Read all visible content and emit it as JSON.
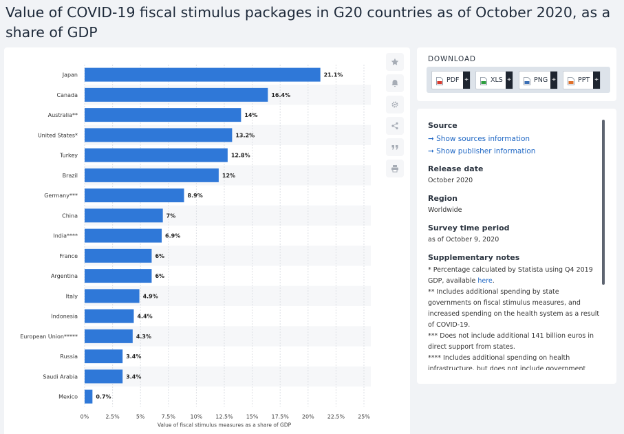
{
  "page": {
    "title": "Value of COVID-19 fiscal stimulus packages in G20 countries as of October 2020, as a share of GDP"
  },
  "toolbar": {
    "icons": [
      "star-icon",
      "bell-icon",
      "gear-icon",
      "share-icon",
      "quote-icon",
      "print-icon"
    ]
  },
  "download": {
    "title": "DOWNLOAD",
    "buttons": [
      {
        "label": "PDF",
        "color": "#d83a2e"
      },
      {
        "label": "XLS",
        "color": "#2e9e3f"
      },
      {
        "label": "PNG",
        "color": "#3b6fb5"
      },
      {
        "label": "PPT",
        "color": "#e0712b"
      }
    ],
    "plus": "+"
  },
  "info": {
    "source_heading": "Source",
    "source_link": "➞ Show sources information",
    "publisher_link": "➞ Show publisher information",
    "release_heading": "Release date",
    "release_value": "October 2020",
    "region_heading": "Region",
    "region_value": "Worldwide",
    "survey_heading": "Survey time period",
    "survey_value": "as of October 9, 2020",
    "notes_heading": "Supplementary notes",
    "note1_a": "* Percentage calculated by Statista using Q4 2019 GDP, available ",
    "note1_link": "here",
    "note1_b": ".",
    "note2": "** Includes additional spending by state governments on fiscal stimulus measures, and increased spending on the health system as a result of COVID-19.",
    "note3": "*** Does not include additional 141 billion euros in direct support from states.",
    "note4": "**** Includes additional spending on health infrastructure, but does not include government"
  },
  "chart_data": {
    "type": "bar",
    "orientation": "horizontal",
    "categories": [
      "Japan",
      "Canada",
      "Australia**",
      "United States*",
      "Turkey",
      "Brazil",
      "Germany***",
      "China",
      "India****",
      "France",
      "Argentina",
      "Italy",
      "Indonesia",
      "European Union*****",
      "Russia",
      "Saudi Arabia",
      "Mexico"
    ],
    "values": [
      21.1,
      16.4,
      14,
      13.2,
      12.8,
      12,
      8.9,
      7,
      6.9,
      6,
      6,
      4.9,
      4.4,
      4.3,
      3.4,
      3.4,
      0.7
    ],
    "value_labels": [
      "21.1%",
      "16.4%",
      "14%",
      "13.2%",
      "12.8%",
      "12%",
      "8.9%",
      "7%",
      "6.9%",
      "6%",
      "6%",
      "4.9%",
      "4.4%",
      "4.3%",
      "3.4%",
      "3.4%",
      "0.7%"
    ],
    "xlim": [
      0,
      25
    ],
    "x_ticks": [
      "0%",
      "2.5%",
      "5%",
      "7.5%",
      "10%",
      "12.5%",
      "15%",
      "17.5%",
      "20%",
      "22.5%",
      "25%"
    ],
    "xlabel": "Value of fiscal stimulus measures as a share of GDP",
    "bar_color": "#2f78d8",
    "grid": true
  }
}
